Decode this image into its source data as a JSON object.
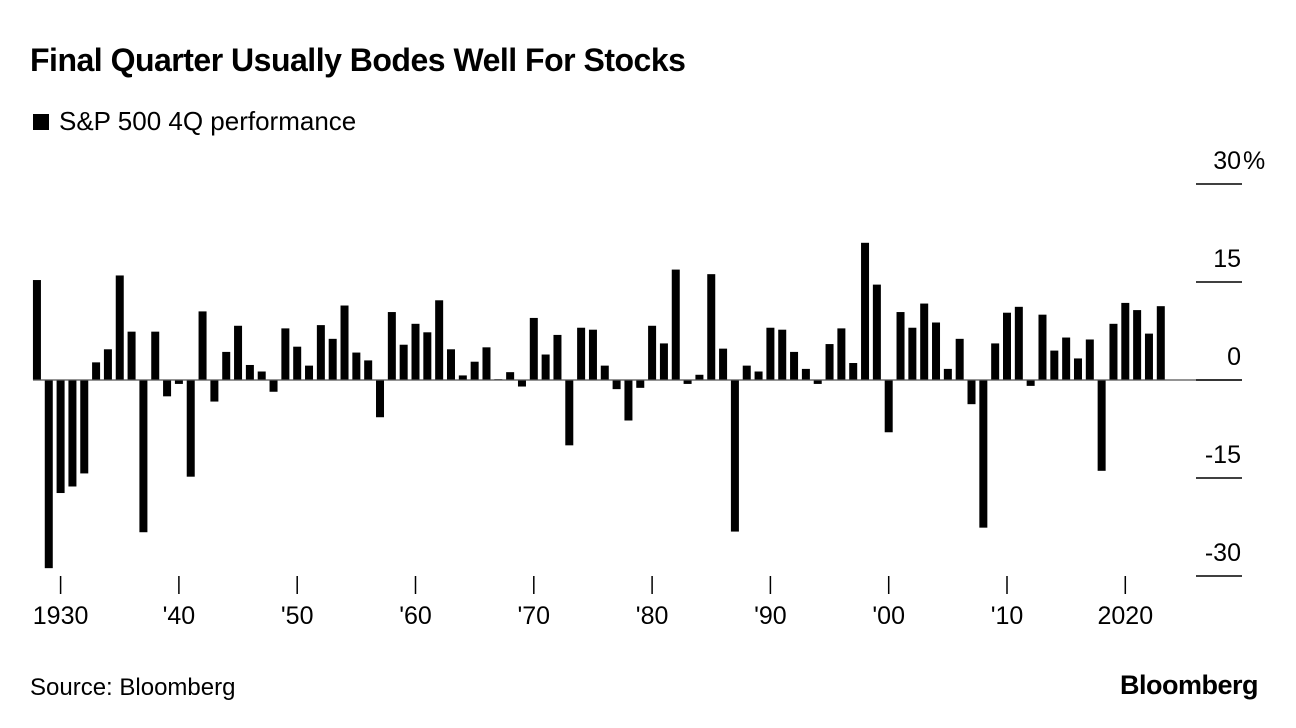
{
  "chart_data": {
    "type": "bar",
    "title": "Final Quarter Usually Bodes Well For Stocks",
    "legend": [
      "S&P 500 4Q performance"
    ],
    "legend_placement": "top-left",
    "xlabel": "",
    "ylabel": "",
    "ylim": [
      -30,
      30
    ],
    "y_ticks": [
      "30",
      "15",
      "0",
      "-15",
      "-30"
    ],
    "y_tick_values": [
      30,
      15,
      0,
      -15,
      -30
    ],
    "y_unit": "%",
    "x_tick_labels": [
      "1930",
      "'40",
      "'50",
      "'60",
      "'70",
      "'80",
      "'90",
      "'00",
      "'10",
      "2020"
    ],
    "x_tick_years": [
      1930,
      1940,
      1950,
      1960,
      1970,
      1980,
      1990,
      2000,
      2010,
      2020
    ],
    "start_year": 1928,
    "values": [
      15.3,
      -28.8,
      -17.3,
      -16.3,
      -14.3,
      2.7,
      4.7,
      16.0,
      7.4,
      -23.3,
      7.4,
      -2.5,
      -0.6,
      -14.8,
      10.5,
      -3.3,
      4.3,
      8.3,
      2.3,
      1.3,
      -1.8,
      7.9,
      5.1,
      2.2,
      8.4,
      6.3,
      11.4,
      4.2,
      3.0,
      -5.7,
      10.4,
      5.4,
      8.6,
      7.3,
      12.2,
      4.7,
      0.7,
      2.8,
      5.0,
      0.1,
      1.2,
      -1.0,
      9.5,
      3.9,
      6.9,
      -10.0,
      8.0,
      7.7,
      2.2,
      -1.4,
      -6.2,
      -1.2,
      8.3,
      5.6,
      16.9,
      -0.6,
      0.8,
      16.2,
      4.8,
      -23.2,
      2.2,
      1.3,
      8.0,
      7.7,
      4.3,
      1.7,
      -0.6,
      5.5,
      7.9,
      2.6,
      21.0,
      14.6,
      -8.0,
      10.4,
      8.0,
      11.7,
      8.8,
      1.7,
      6.3,
      -3.7,
      -22.6,
      5.6,
      10.3,
      11.2,
      -0.9,
      10.0,
      4.5,
      6.5,
      3.3,
      6.2,
      -13.9,
      8.6,
      11.8,
      10.7,
      7.1,
      11.3
    ],
    "grid": false,
    "bar_color": "#000000"
  },
  "footer": {
    "source": "Source: Bloomberg",
    "brand": "Bloomberg"
  }
}
